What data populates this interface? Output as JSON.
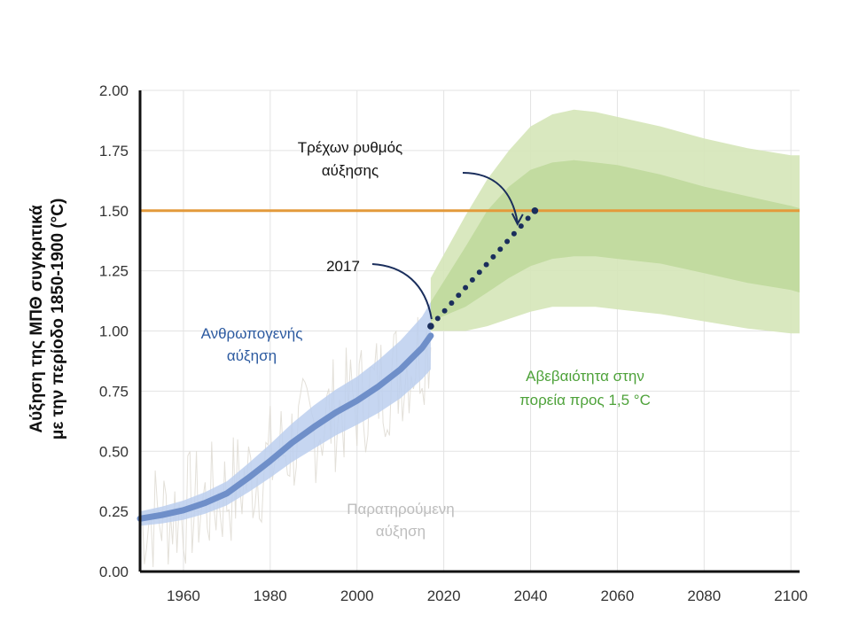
{
  "chart_data": {
    "type": "line",
    "title": "",
    "xlabel": "",
    "ylabel": {
      "line1": "Αύξηση της ΜΠΘ συγκριτικά",
      "line2": "με την περίοδο 1850-1900 (°C)"
    },
    "xlim": [
      1950,
      2102
    ],
    "ylim": [
      0,
      2.0
    ],
    "x_ticks": [
      "1960",
      "1980",
      "2000",
      "2020",
      "2040",
      "2060",
      "2080",
      "2100"
    ],
    "y_ticks": [
      "0.00",
      "0.25",
      "0.50",
      "0.75",
      "1.00",
      "1.25",
      "1.50",
      "1.75",
      "2.00"
    ],
    "grid": true,
    "threshold": {
      "value": 1.5,
      "color": "#e39a3b"
    },
    "series": [
      {
        "role": "anthropogenic",
        "color": "#6f8fc9",
        "x": [
          1950,
          1955,
          1960,
          1965,
          1970,
          1975,
          1980,
          1985,
          1990,
          1995,
          2000,
          2005,
          2010,
          2015,
          2017
        ],
        "y": [
          0.22,
          0.235,
          0.255,
          0.285,
          0.325,
          0.39,
          0.46,
          0.535,
          0.6,
          0.66,
          0.71,
          0.77,
          0.84,
          0.93,
          0.98
        ],
        "band_low": [
          0.19,
          0.2,
          0.215,
          0.24,
          0.275,
          0.33,
          0.39,
          0.455,
          0.51,
          0.565,
          0.61,
          0.66,
          0.72,
          0.8,
          0.84
        ],
        "band_high": [
          0.25,
          0.27,
          0.295,
          0.33,
          0.375,
          0.45,
          0.53,
          0.615,
          0.69,
          0.755,
          0.81,
          0.88,
          0.96,
          1.06,
          1.12
        ]
      },
      {
        "role": "current-rate",
        "color": "#1a2e5c",
        "x": [
          2017,
          2041
        ],
        "y": [
          1.02,
          1.5
        ]
      },
      {
        "role": "uncertainty-outer",
        "color": "#d5e5b8",
        "x": [
          2017,
          2025,
          2030,
          2035,
          2040,
          2045,
          2050,
          2055,
          2060,
          2070,
          2080,
          2090,
          2100,
          2102
        ],
        "low": [
          1.0,
          1.0,
          1.02,
          1.05,
          1.08,
          1.1,
          1.1,
          1.1,
          1.09,
          1.07,
          1.04,
          1.01,
          0.99,
          0.99
        ],
        "high": [
          1.22,
          1.48,
          1.63,
          1.75,
          1.85,
          1.9,
          1.92,
          1.91,
          1.89,
          1.85,
          1.8,
          1.76,
          1.73,
          1.73
        ]
      },
      {
        "role": "uncertainty-inner",
        "color": "#c2dba0",
        "x": [
          2017,
          2025,
          2030,
          2035,
          2040,
          2045,
          2050,
          2055,
          2060,
          2070,
          2080,
          2090,
          2100,
          2102
        ],
        "low": [
          1.04,
          1.1,
          1.16,
          1.22,
          1.27,
          1.3,
          1.31,
          1.31,
          1.3,
          1.28,
          1.24,
          1.2,
          1.17,
          1.16
        ],
        "high": [
          1.12,
          1.35,
          1.5,
          1.6,
          1.67,
          1.7,
          1.71,
          1.7,
          1.69,
          1.65,
          1.6,
          1.56,
          1.52,
          1.51
        ]
      }
    ],
    "annotations": {
      "current_rate": {
        "line1": "Τρέχων ρυθμός",
        "line2": "αύξησης"
      },
      "year_2017": "2017",
      "anthropogenic": {
        "line1": "Ανθρωπογενής",
        "line2": "αύξηση"
      },
      "uncertainty": {
        "line1": "Αβεβαιότητα στην",
        "line2": "πορεία προς 1,5 °C"
      },
      "observed": {
        "line1": "Παρατηρούμενη",
        "line2": "αύξηση"
      }
    }
  }
}
